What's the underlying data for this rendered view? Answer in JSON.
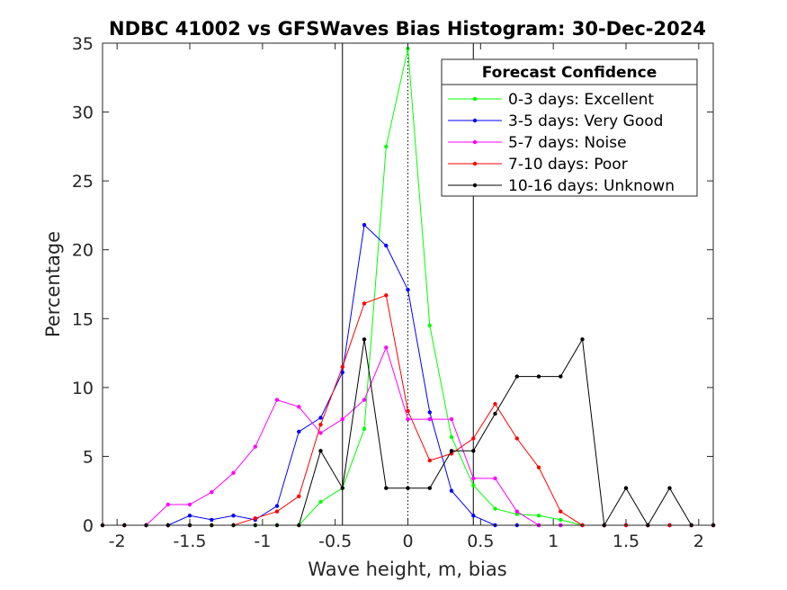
{
  "chart_data": {
    "type": "line",
    "title": "NDBC 41002 vs GFSWaves Bias Histogram: 30-Dec-2024",
    "xlabel": "Wave height, m, bias",
    "ylabel": "Percentage",
    "xlim": [
      -2.1,
      2.1
    ],
    "ylim": [
      0,
      35
    ],
    "xticks": [
      -2,
      -1.5,
      -1,
      -0.5,
      0,
      0.5,
      1,
      1.5,
      2
    ],
    "xtick_labels": [
      "-2",
      "-1.5",
      "-1",
      "-0.5",
      "0",
      "0.5",
      "1",
      "1.5",
      "2"
    ],
    "yticks": [
      0,
      5,
      10,
      15,
      20,
      25,
      30,
      35
    ],
    "ytick_labels": [
      "0",
      "5",
      "10",
      "15",
      "20",
      "25",
      "30",
      "35"
    ],
    "vertical_lines": [
      {
        "x": -0.45,
        "style": "solid"
      },
      {
        "x": 0,
        "style": "dotted"
      },
      {
        "x": 0.45,
        "style": "solid"
      }
    ],
    "legend_title": "Forecast Confidence",
    "legend_position": "top-right",
    "x": [
      -2.1,
      -1.95,
      -1.8,
      -1.65,
      -1.5,
      -1.35,
      -1.2,
      -1.05,
      -0.9,
      -0.75,
      -0.6,
      -0.45,
      -0.3,
      -0.15,
      0,
      0.15,
      0.3,
      0.45,
      0.6,
      0.75,
      0.9,
      1.05,
      1.2,
      1.35,
      1.5,
      1.65,
      1.8,
      1.95,
      2.1
    ],
    "series": [
      {
        "name": "0-3 days: Excellent",
        "color": "#00ff00",
        "values": [
          0,
          0,
          0,
          0,
          0,
          0,
          0,
          0,
          0,
          0,
          1.7,
          2.7,
          7.0,
          27.5,
          34.6,
          14.5,
          6.4,
          2.9,
          1.2,
          0.8,
          0.7,
          0.4,
          0,
          0,
          0,
          0,
          0,
          0,
          0
        ]
      },
      {
        "name": "3-5 days: Very Good",
        "color": "#0000ff",
        "values": [
          0,
          0,
          0,
          0,
          0.7,
          0.4,
          0.7,
          0.4,
          1.4,
          6.8,
          7.8,
          11.1,
          21.8,
          20.3,
          17.1,
          8.2,
          2.5,
          0.7,
          0,
          0,
          0,
          0,
          0,
          0,
          0,
          0,
          0,
          0,
          0
        ]
      },
      {
        "name": "5-7 days: Noise",
        "color": "#ff00ff",
        "values": [
          0,
          0,
          0,
          1.5,
          1.5,
          2.4,
          3.8,
          5.7,
          9.1,
          8.6,
          6.7,
          7.7,
          9.1,
          12.9,
          7.7,
          7.7,
          7.7,
          3.4,
          3.4,
          1.0,
          0,
          0,
          0,
          0,
          0,
          0,
          0,
          0,
          0
        ]
      },
      {
        "name": "7-10 days: Poor",
        "color": "#ff0000",
        "values": [
          0,
          0,
          0,
          0,
          0,
          0,
          0,
          0.5,
          1.0,
          2.1,
          7.3,
          11.5,
          16.1,
          16.7,
          8.3,
          4.7,
          5.2,
          6.3,
          8.8,
          6.3,
          4.2,
          1.0,
          0,
          0,
          0,
          0,
          0,
          0,
          0
        ]
      },
      {
        "name": "10-16 days: Unknown",
        "color": "#000000",
        "values": [
          0,
          0,
          0,
          0,
          0,
          0,
          0,
          0,
          0,
          0,
          5.4,
          2.7,
          13.5,
          2.7,
          2.7,
          2.7,
          5.4,
          5.4,
          8.1,
          10.8,
          10.8,
          10.8,
          13.5,
          0,
          2.7,
          0,
          2.7,
          0,
          0
        ]
      }
    ]
  }
}
